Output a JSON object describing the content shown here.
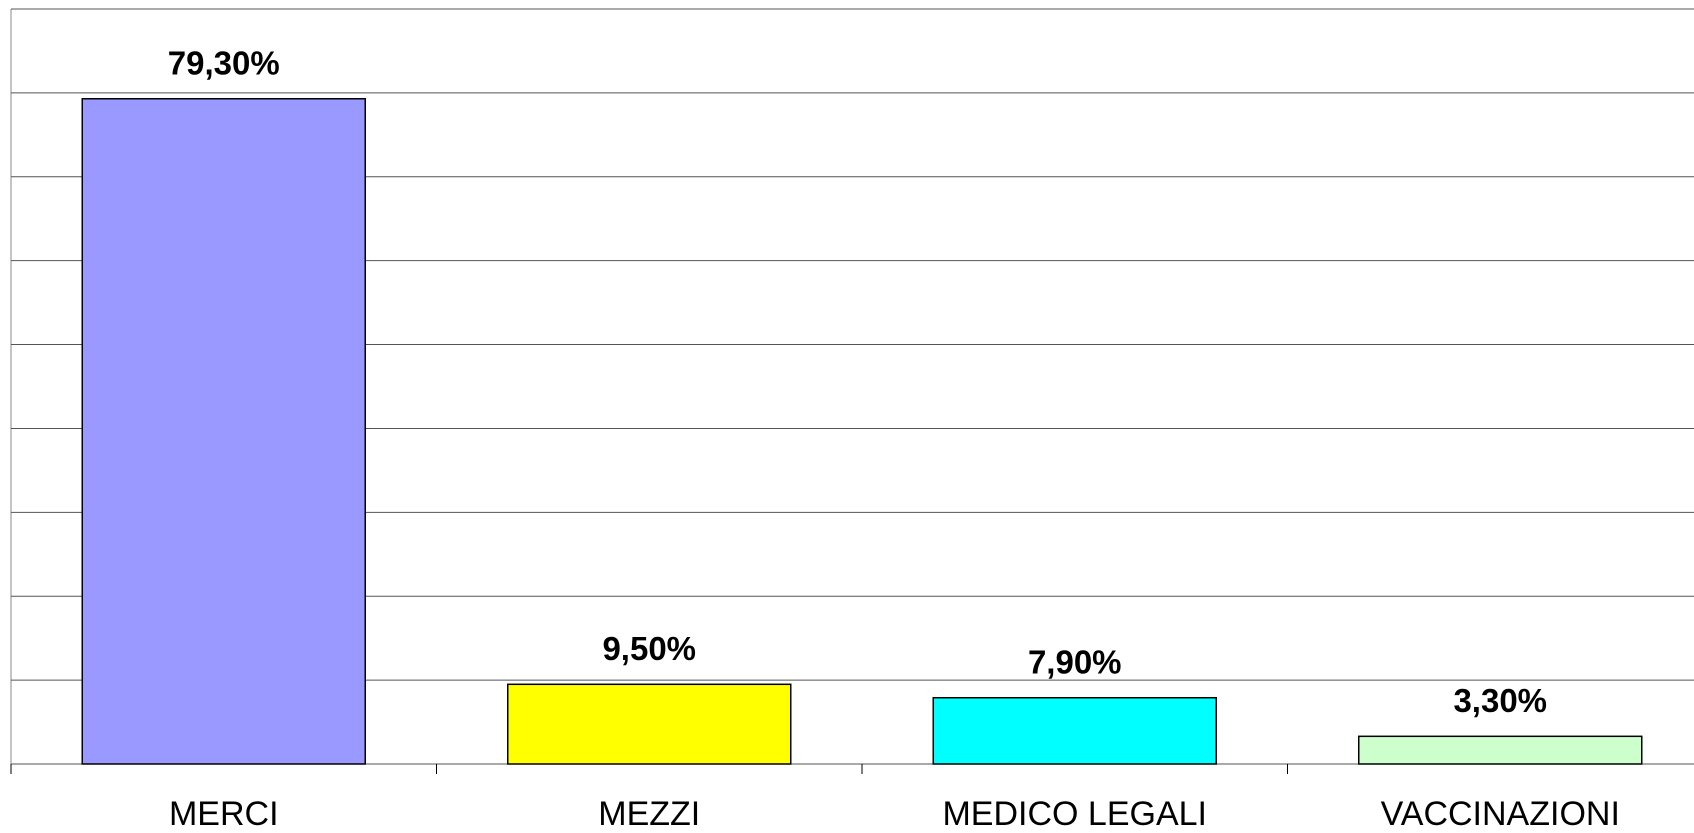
{
  "chart_data": {
    "type": "bar",
    "categories": [
      "MERCI",
      "MEZZI",
      "MEDICO LEGALI",
      "VACCINAZIONI"
    ],
    "values": [
      79.3,
      9.5,
      7.9,
      3.3
    ],
    "value_labels": [
      "79,30%",
      "9,50%",
      "7,90%",
      "3,30%"
    ],
    "colors": [
      "#9999ff",
      "#ffff00",
      "#00ffff",
      "#ccffcc"
    ],
    "ylim": [
      0,
      90
    ],
    "yticks": [
      0,
      10,
      20,
      30,
      40,
      50,
      60,
      70,
      80,
      90
    ],
    "grid": true
  }
}
